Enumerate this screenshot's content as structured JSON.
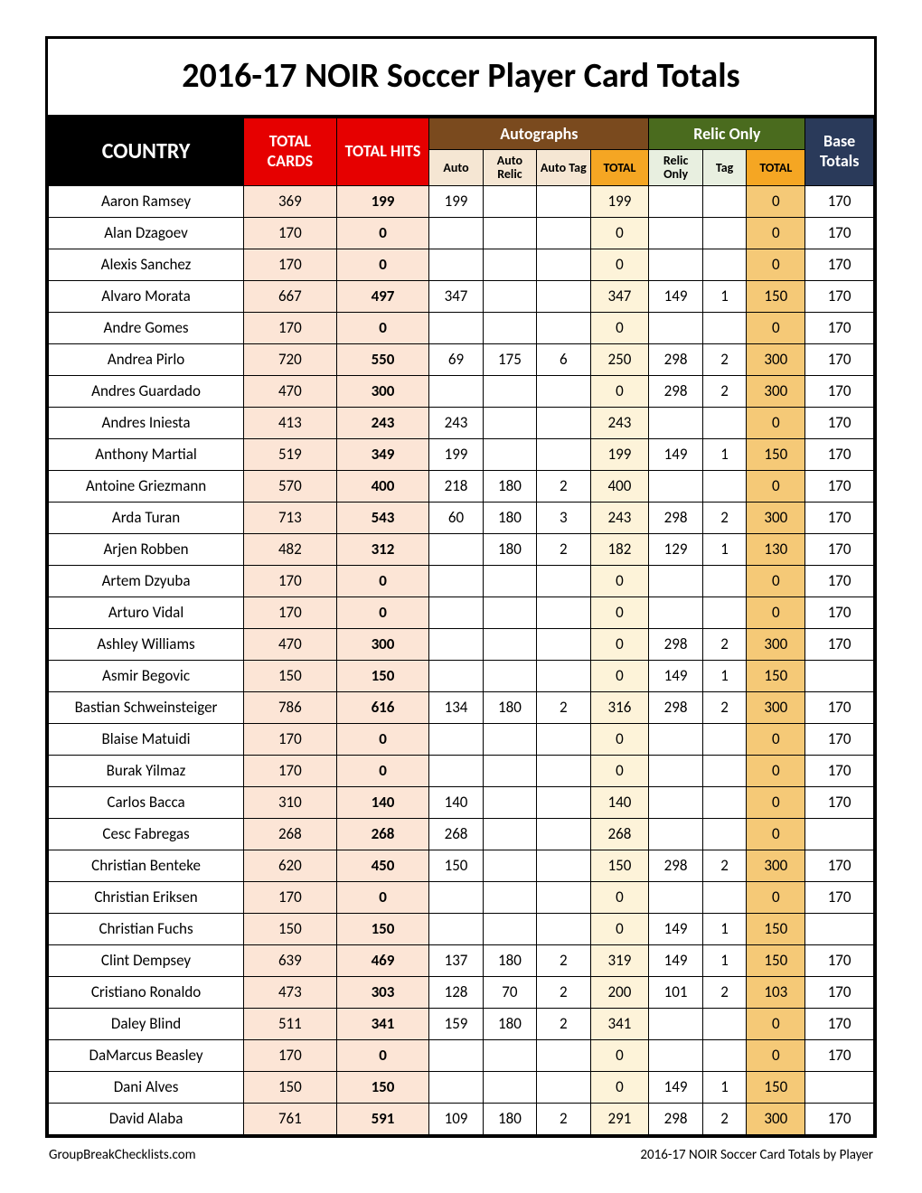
{
  "title": "2016-17 NOIR Soccer Player Card Totals",
  "headers": {
    "country": "COUNTRY",
    "total_cards": "TOTAL CARDS",
    "total_hits": "TOTAL HITS",
    "autographs": "Autographs",
    "relic_only": "Relic Only",
    "base_totals": "Base Totals",
    "auto": "Auto",
    "auto_relic": "Auto Relic",
    "auto_tag": "Auto Tag",
    "total": "TOTAL",
    "relic": "Relic Only",
    "tag": "Tag"
  },
  "rows": [
    {
      "name": "Aaron Ramsey",
      "cards": "369",
      "hits": "199",
      "auto": "199",
      "arelic": "",
      "atag": "",
      "atotal": "199",
      "relic": "",
      "tag": "",
      "rtotal": "0",
      "base": "170"
    },
    {
      "name": "Alan Dzagoev",
      "cards": "170",
      "hits": "0",
      "auto": "",
      "arelic": "",
      "atag": "",
      "atotal": "0",
      "relic": "",
      "tag": "",
      "rtotal": "0",
      "base": "170"
    },
    {
      "name": "Alexis Sanchez",
      "cards": "170",
      "hits": "0",
      "auto": "",
      "arelic": "",
      "atag": "",
      "atotal": "0",
      "relic": "",
      "tag": "",
      "rtotal": "0",
      "base": "170"
    },
    {
      "name": "Alvaro Morata",
      "cards": "667",
      "hits": "497",
      "auto": "347",
      "arelic": "",
      "atag": "",
      "atotal": "347",
      "relic": "149",
      "tag": "1",
      "rtotal": "150",
      "base": "170"
    },
    {
      "name": "Andre Gomes",
      "cards": "170",
      "hits": "0",
      "auto": "",
      "arelic": "",
      "atag": "",
      "atotal": "0",
      "relic": "",
      "tag": "",
      "rtotal": "0",
      "base": "170"
    },
    {
      "name": "Andrea Pirlo",
      "cards": "720",
      "hits": "550",
      "auto": "69",
      "arelic": "175",
      "atag": "6",
      "atotal": "250",
      "relic": "298",
      "tag": "2",
      "rtotal": "300",
      "base": "170"
    },
    {
      "name": "Andres Guardado",
      "cards": "470",
      "hits": "300",
      "auto": "",
      "arelic": "",
      "atag": "",
      "atotal": "0",
      "relic": "298",
      "tag": "2",
      "rtotal": "300",
      "base": "170"
    },
    {
      "name": "Andres Iniesta",
      "cards": "413",
      "hits": "243",
      "auto": "243",
      "arelic": "",
      "atag": "",
      "atotal": "243",
      "relic": "",
      "tag": "",
      "rtotal": "0",
      "base": "170"
    },
    {
      "name": "Anthony Martial",
      "cards": "519",
      "hits": "349",
      "auto": "199",
      "arelic": "",
      "atag": "",
      "atotal": "199",
      "relic": "149",
      "tag": "1",
      "rtotal": "150",
      "base": "170"
    },
    {
      "name": "Antoine Griezmann",
      "cards": "570",
      "hits": "400",
      "auto": "218",
      "arelic": "180",
      "atag": "2",
      "atotal": "400",
      "relic": "",
      "tag": "",
      "rtotal": "0",
      "base": "170"
    },
    {
      "name": "Arda Turan",
      "cards": "713",
      "hits": "543",
      "auto": "60",
      "arelic": "180",
      "atag": "3",
      "atotal": "243",
      "relic": "298",
      "tag": "2",
      "rtotal": "300",
      "base": "170"
    },
    {
      "name": "Arjen Robben",
      "cards": "482",
      "hits": "312",
      "auto": "",
      "arelic": "180",
      "atag": "2",
      "atotal": "182",
      "relic": "129",
      "tag": "1",
      "rtotal": "130",
      "base": "170"
    },
    {
      "name": "Artem Dzyuba",
      "cards": "170",
      "hits": "0",
      "auto": "",
      "arelic": "",
      "atag": "",
      "atotal": "0",
      "relic": "",
      "tag": "",
      "rtotal": "0",
      "base": "170"
    },
    {
      "name": "Arturo Vidal",
      "cards": "170",
      "hits": "0",
      "auto": "",
      "arelic": "",
      "atag": "",
      "atotal": "0",
      "relic": "",
      "tag": "",
      "rtotal": "0",
      "base": "170"
    },
    {
      "name": "Ashley Williams",
      "cards": "470",
      "hits": "300",
      "auto": "",
      "arelic": "",
      "atag": "",
      "atotal": "0",
      "relic": "298",
      "tag": "2",
      "rtotal": "300",
      "base": "170"
    },
    {
      "name": "Asmir Begovic",
      "cards": "150",
      "hits": "150",
      "auto": "",
      "arelic": "",
      "atag": "",
      "atotal": "0",
      "relic": "149",
      "tag": "1",
      "rtotal": "150",
      "base": ""
    },
    {
      "name": "Bastian Schweinsteiger",
      "cards": "786",
      "hits": "616",
      "auto": "134",
      "arelic": "180",
      "atag": "2",
      "atotal": "316",
      "relic": "298",
      "tag": "2",
      "rtotal": "300",
      "base": "170"
    },
    {
      "name": "Blaise Matuidi",
      "cards": "170",
      "hits": "0",
      "auto": "",
      "arelic": "",
      "atag": "",
      "atotal": "0",
      "relic": "",
      "tag": "",
      "rtotal": "0",
      "base": "170"
    },
    {
      "name": "Burak Yilmaz",
      "cards": "170",
      "hits": "0",
      "auto": "",
      "arelic": "",
      "atag": "",
      "atotal": "0",
      "relic": "",
      "tag": "",
      "rtotal": "0",
      "base": "170"
    },
    {
      "name": "Carlos Bacca",
      "cards": "310",
      "hits": "140",
      "auto": "140",
      "arelic": "",
      "atag": "",
      "atotal": "140",
      "relic": "",
      "tag": "",
      "rtotal": "0",
      "base": "170"
    },
    {
      "name": "Cesc Fabregas",
      "cards": "268",
      "hits": "268",
      "auto": "268",
      "arelic": "",
      "atag": "",
      "atotal": "268",
      "relic": "",
      "tag": "",
      "rtotal": "0",
      "base": ""
    },
    {
      "name": "Christian Benteke",
      "cards": "620",
      "hits": "450",
      "auto": "150",
      "arelic": "",
      "atag": "",
      "atotal": "150",
      "relic": "298",
      "tag": "2",
      "rtotal": "300",
      "base": "170"
    },
    {
      "name": "Christian Eriksen",
      "cards": "170",
      "hits": "0",
      "auto": "",
      "arelic": "",
      "atag": "",
      "atotal": "0",
      "relic": "",
      "tag": "",
      "rtotal": "0",
      "base": "170"
    },
    {
      "name": "Christian Fuchs",
      "cards": "150",
      "hits": "150",
      "auto": "",
      "arelic": "",
      "atag": "",
      "atotal": "0",
      "relic": "149",
      "tag": "1",
      "rtotal": "150",
      "base": ""
    },
    {
      "name": "Clint Dempsey",
      "cards": "639",
      "hits": "469",
      "auto": "137",
      "arelic": "180",
      "atag": "2",
      "atotal": "319",
      "relic": "149",
      "tag": "1",
      "rtotal": "150",
      "base": "170"
    },
    {
      "name": "Cristiano Ronaldo",
      "cards": "473",
      "hits": "303",
      "auto": "128",
      "arelic": "70",
      "atag": "2",
      "atotal": "200",
      "relic": "101",
      "tag": "2",
      "rtotal": "103",
      "base": "170"
    },
    {
      "name": "Daley Blind",
      "cards": "511",
      "hits": "341",
      "auto": "159",
      "arelic": "180",
      "atag": "2",
      "atotal": "341",
      "relic": "",
      "tag": "",
      "rtotal": "0",
      "base": "170"
    },
    {
      "name": "DaMarcus Beasley",
      "cards": "170",
      "hits": "0",
      "auto": "",
      "arelic": "",
      "atag": "",
      "atotal": "0",
      "relic": "",
      "tag": "",
      "rtotal": "0",
      "base": "170"
    },
    {
      "name": "Dani Alves",
      "cards": "150",
      "hits": "150",
      "auto": "",
      "arelic": "",
      "atag": "",
      "atotal": "0",
      "relic": "149",
      "tag": "1",
      "rtotal": "150",
      "base": ""
    },
    {
      "name": "David Alaba",
      "cards": "761",
      "hits": "591",
      "auto": "109",
      "arelic": "180",
      "atag": "2",
      "atotal": "291",
      "relic": "298",
      "tag": "2",
      "rtotal": "300",
      "base": "170"
    }
  ],
  "footer": {
    "left": "GroupBreakChecklists.com",
    "right": "2016-17 NOIR Soccer Card Totals by Player"
  }
}
